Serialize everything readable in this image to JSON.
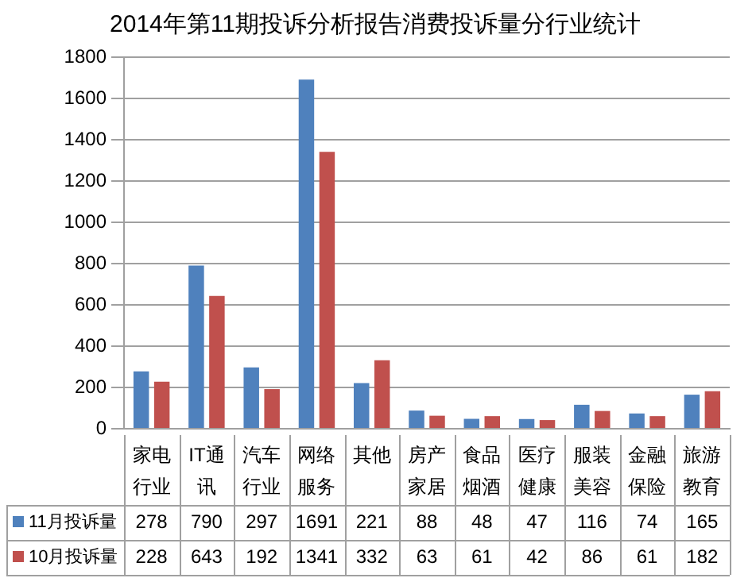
{
  "chart_data": {
    "type": "bar",
    "title": "2014年第11期投诉分析报告消费投诉量分行业统计",
    "categories": [
      "家电行业",
      "IT通讯",
      "汽车行业",
      "网络服务",
      "其他",
      "房产家居",
      "食品烟酒",
      "医疗健康",
      "服装美容",
      "金融保险",
      "旅游教育"
    ],
    "series": [
      {
        "name": "11月投诉量",
        "color": "#4f81bd",
        "values": [
          278,
          790,
          297,
          1691,
          221,
          88,
          48,
          47,
          116,
          74,
          165
        ]
      },
      {
        "name": "10月投诉量",
        "color": "#c0504d",
        "values": [
          228,
          643,
          192,
          1341,
          332,
          63,
          61,
          42,
          86,
          61,
          182
        ]
      }
    ],
    "ylim": [
      0,
      1800
    ],
    "yticks": [
      0,
      200,
      400,
      600,
      800,
      1000,
      1200,
      1400,
      1600,
      1800
    ],
    "grid": "y",
    "data_labels": true,
    "legend": "bottom left"
  }
}
